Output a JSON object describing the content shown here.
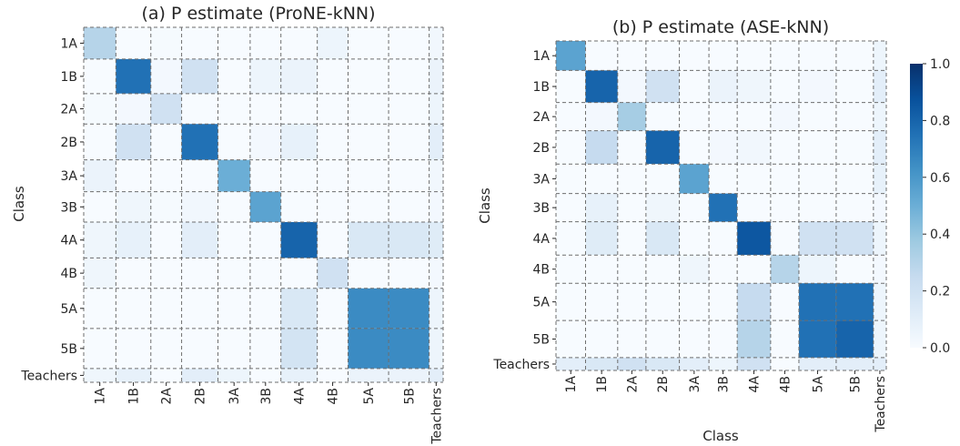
{
  "figure": {
    "panels": [
      {
        "title": "(a) P estimate (ProNE-kNN)",
        "xlabel": "",
        "ylabel": "Class"
      },
      {
        "title": "(b) P estimate (ASE-kNN)",
        "xlabel": "Class",
        "ylabel": "Class"
      }
    ],
    "colorbar": {
      "ticks": [
        "0.0",
        "0.2",
        "0.4",
        "0.6",
        "0.8",
        "1.0"
      ],
      "colormap": "Blues"
    }
  },
  "chart_data": [
    {
      "type": "heatmap",
      "title": "(a) P estimate (ProNE-kNN)",
      "xlabel": "",
      "ylabel": "Class",
      "categories": [
        "1A",
        "1B",
        "2A",
        "2B",
        "3A",
        "3B",
        "4A",
        "4B",
        "5A",
        "5B",
        "Teachers"
      ],
      "xtick_labels": [
        "1A",
        "1B",
        "2A",
        "2B",
        "3A",
        "3B",
        "4A",
        "4B",
        "5A",
        "5B",
        "Teachers"
      ],
      "ytick_labels": [
        "1A",
        "1B",
        "2A",
        "2B",
        "3A",
        "3B",
        "4A",
        "4B",
        "5A",
        "5B",
        "Teachers"
      ],
      "block_sizes": [
        23,
        25,
        22,
        26,
        23,
        22,
        26,
        22,
        29,
        29,
        10
      ],
      "block_values": [
        [
          0.3,
          0.0,
          0.01,
          0.0,
          0.0,
          0.0,
          0.0,
          0.05,
          0.0,
          0.0,
          0.03
        ],
        [
          0.0,
          0.75,
          0.02,
          0.2,
          0.0,
          0.05,
          0.06,
          0.0,
          0.0,
          0.0,
          0.06
        ],
        [
          0.01,
          0.02,
          0.2,
          0.0,
          0.0,
          0.0,
          0.0,
          0.0,
          0.0,
          0.0,
          0.05
        ],
        [
          0.0,
          0.2,
          0.0,
          0.75,
          0.0,
          0.02,
          0.08,
          0.0,
          0.0,
          0.0,
          0.1
        ],
        [
          0.06,
          0.0,
          0.0,
          0.0,
          0.5,
          0.0,
          0.0,
          0.0,
          0.0,
          0.0,
          0.03
        ],
        [
          0.0,
          0.04,
          0.01,
          0.03,
          0.0,
          0.55,
          0.0,
          0.0,
          0.0,
          0.0,
          0.02
        ],
        [
          0.04,
          0.08,
          0.0,
          0.1,
          0.0,
          0.0,
          0.8,
          0.0,
          0.15,
          0.15,
          0.12
        ],
        [
          0.04,
          0.0,
          0.0,
          0.0,
          0.0,
          0.0,
          0.0,
          0.2,
          0.0,
          0.0,
          0.02
        ],
        [
          0.0,
          0.0,
          0.0,
          0.0,
          0.0,
          0.0,
          0.15,
          0.0,
          0.65,
          0.65,
          0.05
        ],
        [
          0.0,
          0.0,
          0.0,
          0.0,
          0.0,
          0.0,
          0.18,
          0.0,
          0.65,
          0.65,
          0.05
        ],
        [
          0.04,
          0.08,
          0.0,
          0.1,
          0.05,
          0.0,
          0.08,
          0.0,
          0.06,
          0.06,
          0.1
        ]
      ],
      "vmin": 0.0,
      "vmax": 1.0,
      "colormap": "Blues",
      "grid": true
    },
    {
      "type": "heatmap",
      "title": "(b) P estimate (ASE-kNN)",
      "xlabel": "Class",
      "ylabel": "Class",
      "categories": [
        "1A",
        "1B",
        "2A",
        "2B",
        "3A",
        "3B",
        "4A",
        "4B",
        "5A",
        "5B",
        "Teachers"
      ],
      "xtick_labels": [
        "1A",
        "1B",
        "2A",
        "2B",
        "3A",
        "3B",
        "4A",
        "4B",
        "5A",
        "5B",
        "Teachers"
      ],
      "ytick_labels": [
        "1A",
        "1B",
        "2A",
        "2B",
        "3A",
        "3B",
        "4A",
        "4B",
        "5A",
        "5B",
        "Teachers"
      ],
      "block_sizes": [
        23,
        25,
        22,
        26,
        23,
        22,
        26,
        22,
        29,
        29,
        10
      ],
      "block_values": [
        [
          0.55,
          0.0,
          0.0,
          0.0,
          0.0,
          0.0,
          0.0,
          0.0,
          0.0,
          0.0,
          0.05
        ],
        [
          0.0,
          0.8,
          0.02,
          0.2,
          0.0,
          0.06,
          0.04,
          0.0,
          0.02,
          0.0,
          0.1
        ],
        [
          0.0,
          0.02,
          0.35,
          0.0,
          0.0,
          0.0,
          0.0,
          0.02,
          0.0,
          0.0,
          0.05
        ],
        [
          0.0,
          0.25,
          0.0,
          0.8,
          0.0,
          0.02,
          0.03,
          0.0,
          0.0,
          0.0,
          0.1
        ],
        [
          0.0,
          0.0,
          0.0,
          0.0,
          0.55,
          0.0,
          0.0,
          0.0,
          0.0,
          0.0,
          0.08
        ],
        [
          0.0,
          0.08,
          0.0,
          0.04,
          0.0,
          0.75,
          0.0,
          0.0,
          0.0,
          0.0,
          0.02
        ],
        [
          0.0,
          0.12,
          0.0,
          0.15,
          0.0,
          0.0,
          0.85,
          0.0,
          0.2,
          0.2,
          0.05
        ],
        [
          0.0,
          0.0,
          0.0,
          0.0,
          0.04,
          0.0,
          0.0,
          0.3,
          0.05,
          0.0,
          0.02
        ],
        [
          0.0,
          0.0,
          0.0,
          0.0,
          0.0,
          0.0,
          0.25,
          0.0,
          0.75,
          0.75,
          0.05
        ],
        [
          0.0,
          0.0,
          0.0,
          0.0,
          0.0,
          0.0,
          0.3,
          0.0,
          0.75,
          0.8,
          0.05
        ],
        [
          0.1,
          0.15,
          0.2,
          0.15,
          0.1,
          0.05,
          0.2,
          0.0,
          0.1,
          0.1,
          0.1
        ]
      ],
      "vmin": 0.0,
      "vmax": 1.0,
      "colormap": "Blues",
      "grid": true
    }
  ]
}
